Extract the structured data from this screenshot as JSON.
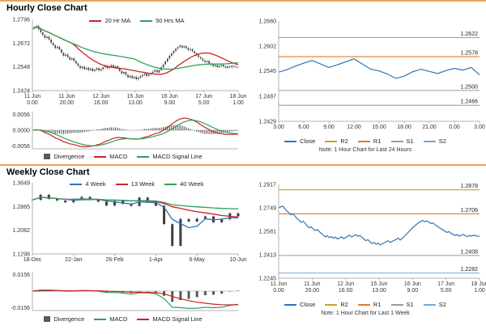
{
  "page": {
    "background": "#FFFFFF",
    "rule_color": "#EFA25B"
  },
  "chart_data": [
    {
      "id": "hourly_price",
      "type": "candlestick",
      "title": "Hourly Close Chart",
      "x_tick_labels": [
        [
          "11 Jun",
          "0.00"
        ],
        [
          "11 Jun",
          "20.00"
        ],
        [
          "12 Jun",
          "16.00"
        ],
        [
          "15 Jun",
          "13.00"
        ],
        [
          "16 Jun",
          "9.00"
        ],
        [
          "17 Jun",
          "5.00"
        ],
        [
          "18 Jun",
          "1.00"
        ]
      ],
      "y_ticks": [
        1.2796,
        1.2672,
        1.2548,
        1.2424
      ],
      "ylim": [
        1.2424,
        1.2796
      ],
      "close": [
        1.2748,
        1.2756,
        1.2762,
        1.2744,
        1.2728,
        1.2714,
        1.2699,
        1.2706,
        1.2691,
        1.2673,
        1.2661,
        1.2646,
        1.2653,
        1.2639,
        1.2621,
        1.2606,
        1.2613,
        1.2599,
        1.2586,
        1.2593,
        1.2579,
        1.2566,
        1.2553,
        1.2541,
        1.2549,
        1.2536,
        1.2543,
        1.2531,
        1.2539,
        1.2526,
        1.2533,
        1.2541,
        1.2529,
        1.2536,
        1.2546,
        1.2553,
        1.2541,
        1.2549,
        1.2557,
        1.2545,
        1.2551,
        1.2539,
        1.2526,
        1.2513,
        1.2521,
        1.2506,
        1.2493,
        1.2501,
        1.2489,
        1.2496,
        1.2483,
        1.2491,
        1.2499,
        1.2506,
        1.2513,
        1.2501,
        1.2509,
        1.2516,
        1.2523,
        1.2531,
        1.2519,
        1.2531,
        1.2546,
        1.2561,
        1.2576,
        1.2591,
        1.2606,
        1.2619,
        1.2631,
        1.2643,
        1.2651,
        1.2659,
        1.2649,
        1.2656,
        1.2646,
        1.2636,
        1.2641,
        1.2629,
        1.2619,
        1.2609,
        1.2599,
        1.2591,
        1.2581,
        1.2573,
        1.2579,
        1.2566,
        1.2559,
        1.2551,
        1.2557,
        1.2546,
        1.2553,
        1.2559,
        1.2549,
        1.2543,
        1.2551,
        1.2546,
        1.2553,
        1.2549,
        1.2545,
        1.2547
      ],
      "series": [
        {
          "name": "20 Hr MA",
          "period": 20,
          "color": "#CC2222"
        },
        {
          "name": "50 Hrs MA",
          "period": 50,
          "color": "#2FA05A"
        }
      ]
    },
    {
      "id": "hourly_macd",
      "type": "macd",
      "source": 0,
      "y_ticks": [
        0.0056,
        0.0,
        -0.0056
      ],
      "legend": [
        {
          "name": "Divergence",
          "color": "#595959"
        },
        {
          "name": "MACD",
          "color": "#CC2222"
        },
        {
          "name": "MACD Signal Line",
          "color": "#2FA05A"
        }
      ]
    },
    {
      "id": "hourly_pivot",
      "type": "line",
      "x_tick_labels": [
        "3.00",
        "6.00",
        "9.00",
        "12.00",
        "15.00",
        "18.00",
        "21.00",
        "0.00",
        "3.00"
      ],
      "y_ticks": [
        1.266,
        1.2602,
        1.2545,
        1.2487,
        1.2429
      ],
      "ylim": [
        1.2429,
        1.266
      ],
      "close": [
        1.2542,
        1.2548,
        1.2556,
        1.2563,
        1.2569,
        1.2561,
        1.2553,
        1.2559,
        1.2566,
        1.2573,
        1.2561,
        1.2549,
        1.2545,
        1.2538,
        1.2528,
        1.2533,
        1.2543,
        1.2549,
        1.2544,
        1.2539,
        1.2546,
        1.2551,
        1.2547,
        1.2553,
        1.2536
      ],
      "pivots": [
        {
          "name": "R2",
          "value": 1.2622,
          "color": "#C9A227"
        },
        {
          "name": "R1",
          "value": 1.2578,
          "color": "#E07B28"
        },
        {
          "name": "S1",
          "value": 1.25,
          "color": "#9B9B9B"
        },
        {
          "name": "S2",
          "value": 1.2466,
          "color": "#74A9D8"
        }
      ],
      "legend": [
        {
          "name": "Close",
          "color": "#2E75B6"
        },
        {
          "name": "R2",
          "color": "#C9A227"
        },
        {
          "name": "R1",
          "color": "#E07B28"
        },
        {
          "name": "S1",
          "color": "#9B9B9B"
        },
        {
          "name": "S2",
          "color": "#74A9D8"
        }
      ],
      "note": "Note: 1 Hour Chart for Last 24 Hours"
    },
    {
      "id": "weekly_price",
      "type": "candlestick",
      "title": "Weekly Close Chart",
      "x_tick_labels": [
        "18-Dec",
        "22-Jan",
        "26-Feb",
        "1-Apr",
        "6-May",
        "10-Jun"
      ],
      "y_ticks": [
        1.3649,
        1.2865,
        1.2082,
        1.1298
      ],
      "ylim": [
        1.1298,
        1.3649
      ],
      "close": [
        1.3082,
        1.3254,
        1.3112,
        1.3063,
        1.3002,
        1.3106,
        1.3183,
        1.3087,
        1.3023,
        1.2896,
        1.3052,
        1.2951,
        1.2883,
        1.3163,
        1.3021,
        1.2892,
        1.2283,
        1.1566,
        1.2454,
        1.2366,
        1.2466,
        1.2541,
        1.2342,
        1.2441,
        1.2642,
        1.2543
      ],
      "series": [
        {
          "name": "4 Week",
          "period": 4,
          "color": "#2E75B6"
        },
        {
          "name": "13 Week",
          "period": 13,
          "color": "#CC2222"
        },
        {
          "name": "40 Week",
          "period": 40,
          "color": "#2FA05A"
        }
      ]
    },
    {
      "id": "weekly_macd",
      "type": "macd",
      "source": 3,
      "y_ticks": [
        0.0156,
        -0.0156
      ],
      "legend": [
        {
          "name": "Divergence",
          "color": "#595959"
        },
        {
          "name": "MACD",
          "color": "#2FA05A"
        },
        {
          "name": "MACD Signal Line",
          "color": "#CC2222"
        }
      ]
    },
    {
      "id": "weekly_pivot",
      "type": "line",
      "source": 0,
      "x_tick_labels": [
        [
          "11 Jun",
          "0.00"
        ],
        [
          "11 Jun",
          "20.00"
        ],
        [
          "12 Jun",
          "16.00"
        ],
        [
          "15 Jun",
          "13.00"
        ],
        [
          "16 Jun",
          "9.00"
        ],
        [
          "17 Jun",
          "5.00"
        ],
        [
          "18 Jun",
          "1.00"
        ]
      ],
      "y_ticks": [
        1.2917,
        1.2749,
        1.2581,
        1.2413,
        1.2245
      ],
      "ylim": [
        1.2245,
        1.2917
      ],
      "pivots": [
        {
          "name": "R2",
          "value": 1.2878,
          "color": "#C9A227"
        },
        {
          "name": "R1",
          "value": 1.2706,
          "color": "#E07B28"
        },
        {
          "name": "S1",
          "value": 1.2408,
          "color": "#9B9B9B"
        },
        {
          "name": "S2",
          "value": 1.2282,
          "color": "#74A9D8"
        }
      ],
      "legend": [
        {
          "name": "Close",
          "color": "#2E75B6"
        },
        {
          "name": "R2",
          "color": "#C9A227"
        },
        {
          "name": "R1",
          "color": "#E07B28"
        },
        {
          "name": "S1",
          "color": "#9B9B9B"
        },
        {
          "name": "S2",
          "color": "#74A9D8"
        }
      ],
      "note": "Note: 1 Hour Chart for Last 1 Week"
    }
  ]
}
